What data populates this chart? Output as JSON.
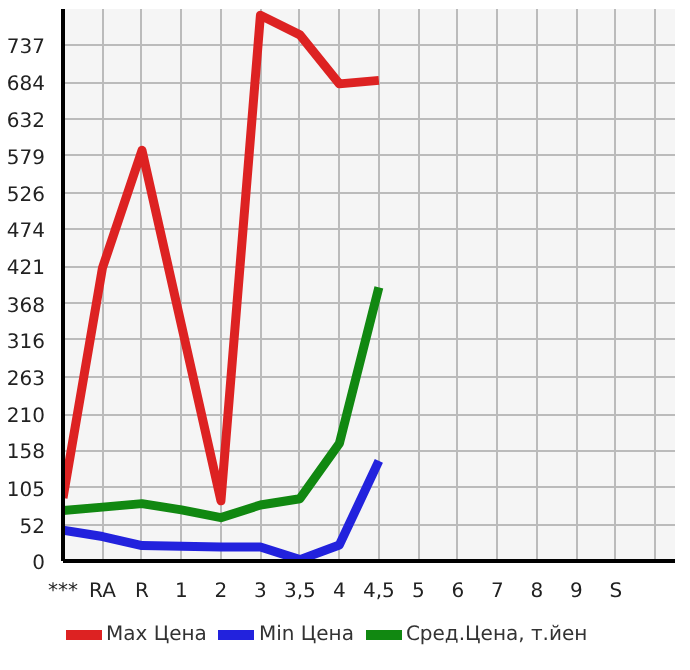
{
  "chart_data": {
    "type": "line",
    "categories": [
      "***",
      "RA",
      "R",
      "1",
      "2",
      "3",
      "3,5",
      "4",
      "4,5",
      "5",
      "6",
      "7",
      "8",
      "9",
      "S"
    ],
    "series": [
      {
        "name": "Max Цена",
        "color": "#dd2222",
        "values": [
          90,
          419,
          587,
          337,
          86,
          780,
          752,
          682,
          687,
          null,
          null,
          null,
          null,
          null,
          null
        ]
      },
      {
        "name": "Min Цена",
        "color": "#2222dd",
        "values": [
          44,
          35,
          22,
          21,
          20,
          20,
          2,
          23,
          143,
          null,
          null,
          null,
          null,
          null,
          null
        ]
      },
      {
        "name": "Сред.Цена, т.йен",
        "color": "#118811",
        "values": [
          72,
          77,
          82,
          73,
          62,
          80,
          89,
          168,
          391,
          null,
          null,
          null,
          null,
          null,
          null
        ]
      }
    ],
    "ylim": [
      0,
      789
    ],
    "yticks": [
      0,
      52,
      105,
      158,
      210,
      263,
      316,
      368,
      421,
      474,
      526,
      579,
      632,
      684,
      737,
      {
        "value": 789,
        "label": null
      }
    ],
    "grid": true,
    "legend": "bottom",
    "marker": "none",
    "line_style": "solid"
  }
}
